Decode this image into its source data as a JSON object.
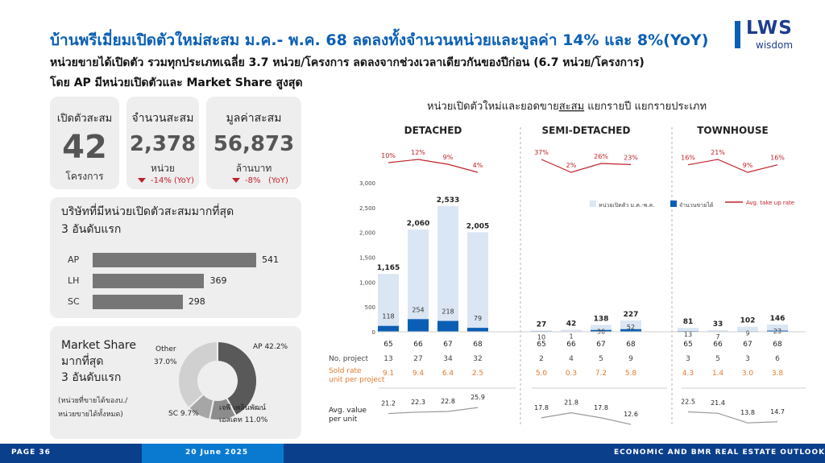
{
  "header": {
    "title": "บ้านพรีเมี่ยมเปิดตัวใหม่สะสม ม.ค.- พ.ค. 68 ลดลงทั้งจำนวนหน่วยและมูลค่า 14% และ 8%(YoY)",
    "subtitle1": "หน่วยขายได้เปิดตัว รวมทุกประเภทเฉลี่ย 3.7 หน่วย/โครงการ ลดลงจากช่วงเวลาเดียวกันของปีก่อน (6.7 หน่วย/โครงการ)",
    "subtitle2": "โดย AP มีหน่วยเปิดตัวและ Market Share สูงสุด"
  },
  "logo": {
    "name": "LWS",
    "tagline": "wisdom",
    "color": "#0a5fb4"
  },
  "kpis": [
    {
      "label": "เปิดตัวสะสม",
      "value": "42",
      "unit": "โครงการ",
      "change": "",
      "yoy": ""
    },
    {
      "label": "จำนวนสะสม",
      "value": "2,378",
      "unit": "หน่วย",
      "change": "-14%",
      "yoy": "(YoY)"
    },
    {
      "label": "มูลค่าสะสม",
      "value": "56,873",
      "unit": "ล้านบาท",
      "change": "-8%",
      "yoy": "(YoY)"
    }
  ],
  "top_developers": {
    "title_line1": "บริษัทที่มีหน่วยเปิดตัวสะสมมากที่สุด",
    "title_line2": "3 อันดับแรก",
    "items": [
      {
        "label": "AP",
        "value": 541
      },
      {
        "label": "LH",
        "value": 369
      },
      {
        "label": "SC",
        "value": 298
      }
    ]
  },
  "market_share": {
    "title_line1": "Market Share",
    "title_line2": "มากที่สุด",
    "title_line3": "3 อันดับแรก",
    "note_line1": "(หน่วยที่ขายได้ของบ./",
    "note_line2": "หน่วยขายได้ทั้งหมด)",
    "segments": [
      {
        "label": "AP 42.2%",
        "value": 42.2,
        "color": "#595959"
      },
      {
        "label": "เจพี เพลินพัฒน์ เอสเตท 11.0%",
        "label_l1": "เจพี เพลินพัฒน์",
        "label_l2": "เอสเตท 11.0%",
        "value": 11.0,
        "color": "#8c8c8c"
      },
      {
        "label": "SC 9.7%",
        "value": 9.7,
        "color": "#a6a6a6"
      },
      {
        "label": "Other 37.0%",
        "label_l1": "Other",
        "label_l2": "37.0%",
        "value": 37.0,
        "color": "#d0d0d0"
      }
    ]
  },
  "chart_title_pre": "หน่วยเปิดตัวใหม่และยอดขาย",
  "chart_title_u": "สะสม",
  "chart_title_post": " แยกรายปี แยกรายประเภท",
  "chart_data": {
    "type": "bar",
    "title": "หน่วยเปิดตัวใหม่และยอดขายสะสม แยกรายปี แยกรายประเภท",
    "y_ticks": [
      "3,000",
      "2,500",
      "2,000",
      "1,500",
      "1,000",
      "500",
      "0"
    ],
    "ylim": [
      0,
      3000
    ],
    "legend": {
      "launched": "หน่วยเปิดตัว ม.ค.-พ.ค.",
      "sold": "จำนวนขายได้",
      "takeup": "Avg. take up rate"
    },
    "colors": {
      "launched": "#dbe6f4",
      "sold": "#0a5fb4",
      "takeup": "#c0222a",
      "value_line": "#999999"
    },
    "row_labels": {
      "projects": "No. project",
      "sold_rate_l1": "Sold rate",
      "sold_rate_l2": "unit per project",
      "avg_value_l1": "Avg. value",
      "avg_value_l2": "per unit"
    },
    "groups": [
      {
        "name": "DETACHED",
        "years": [
          "65",
          "66",
          "67",
          "68"
        ],
        "launched": [
          1165,
          2060,
          2533,
          2005
        ],
        "sold": [
          118,
          254,
          218,
          79
        ],
        "take_up_rate": [
          "10%",
          "12%",
          "9%",
          "4%"
        ],
        "projects": [
          13,
          27,
          34,
          32
        ],
        "sold_rate": [
          "9.1",
          "9.4",
          "6.4",
          "2.5"
        ],
        "avg_value": [
          "21.2",
          "22.3",
          "22.8",
          "25.9"
        ]
      },
      {
        "name": "SEMI-DETACHED",
        "years": [
          "65",
          "66",
          "67",
          "68"
        ],
        "launched": [
          27,
          42,
          138,
          227
        ],
        "sold": [
          10,
          1,
          36,
          52
        ],
        "take_up_rate": [
          "37%",
          "2%",
          "26%",
          "23%"
        ],
        "projects": [
          2,
          4,
          5,
          9
        ],
        "sold_rate": [
          "5.0",
          "0.3",
          "7.2",
          "5.8"
        ],
        "avg_value": [
          "17.8",
          "21.8",
          "17.8",
          "12.6"
        ]
      },
      {
        "name": "TOWNHOUSE",
        "years": [
          "65",
          "66",
          "67",
          "68"
        ],
        "launched": [
          81,
          33,
          102,
          146
        ],
        "sold": [
          13,
          7,
          9,
          23
        ],
        "take_up_rate": [
          "16%",
          "21%",
          "9%",
          "16%"
        ],
        "projects": [
          3,
          5,
          3,
          6
        ],
        "sold_rate": [
          "4.3",
          "1.4",
          "3.0",
          "3.8"
        ],
        "avg_value": [
          "22.5",
          "21.4",
          "13.8",
          "14.7"
        ]
      }
    ]
  },
  "footer": {
    "page": "PAGE 36",
    "date": "20 June 2025",
    "report": "ECONOMIC AND BMR REAL ESTATE OUTLOOK"
  }
}
